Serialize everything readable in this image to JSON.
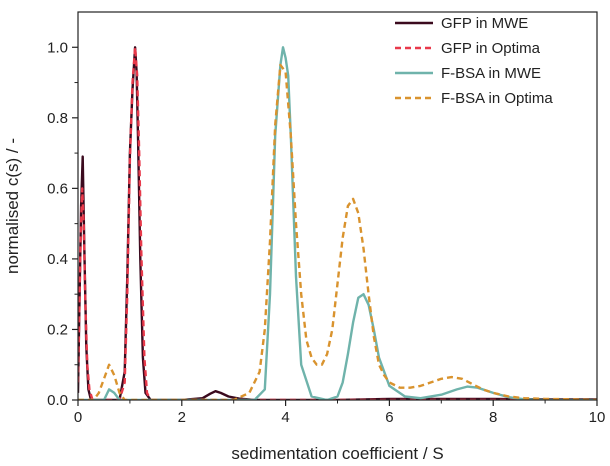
{
  "chart_data": {
    "type": "line",
    "xlabel": "sedimentation coefficient / S",
    "ylabel": "normalised c(s) / -",
    "xlim": [
      0,
      10
    ],
    "ylim": [
      0,
      1.1
    ],
    "x_ticks": [
      0,
      2,
      4,
      6,
      8,
      10
    ],
    "y_ticks": [
      0.0,
      0.2,
      0.4,
      0.6,
      0.8,
      1.0
    ],
    "x_tick_labels": [
      "0",
      "2",
      "4",
      "6",
      "8",
      "10"
    ],
    "y_tick_labels": [
      "0.0",
      "0.2",
      "0.4",
      "0.6",
      "0.8",
      "1.0"
    ],
    "grid": false,
    "legend_position": "top-right",
    "series": [
      {
        "name": "GFP in MWE",
        "color": "#3b0a1e",
        "style": "solid",
        "x": [
          0.0,
          0.03,
          0.06,
          0.09,
          0.12,
          0.16,
          0.2,
          0.25,
          0.3,
          0.4,
          0.6,
          0.8,
          0.9,
          0.95,
          1.0,
          1.05,
          1.1,
          1.13,
          1.16,
          1.2,
          1.25,
          1.3,
          1.4,
          1.6,
          2.0,
          2.4,
          2.55,
          2.65,
          2.75,
          2.9,
          3.1,
          3.4,
          4.0,
          5.0,
          6.0,
          7.0,
          8.0,
          9.0,
          10.0
        ],
        "y": [
          0.02,
          0.3,
          0.55,
          0.69,
          0.45,
          0.15,
          0.03,
          0.0,
          0.0,
          0.0,
          0.0,
          0.0,
          0.08,
          0.35,
          0.7,
          0.88,
          1.0,
          0.93,
          0.72,
          0.4,
          0.12,
          0.02,
          0.0,
          0.0,
          0.0,
          0.005,
          0.018,
          0.025,
          0.02,
          0.01,
          0.004,
          0.0,
          0.0,
          0.0,
          0.003,
          0.003,
          0.003,
          0.002,
          0.002
        ]
      },
      {
        "name": "GFP in Optima",
        "color": "#e8394a",
        "style": "dashed",
        "x": [
          0.0,
          0.05,
          0.08,
          0.11,
          0.14,
          0.18,
          0.22,
          0.28,
          0.35,
          0.8,
          0.9,
          0.95,
          1.0,
          1.05,
          1.1,
          1.14,
          1.18,
          1.22,
          1.28,
          1.33,
          1.4,
          1.6,
          10.0
        ],
        "y": [
          0.05,
          0.45,
          0.6,
          0.5,
          0.28,
          0.1,
          0.03,
          0.0,
          0.0,
          0.0,
          0.05,
          0.3,
          0.68,
          0.9,
          1.0,
          0.92,
          0.7,
          0.42,
          0.12,
          0.02,
          0.0,
          0.0,
          0.0
        ]
      },
      {
        "name": "F-BSA in MWE",
        "color": "#6fb3ab",
        "style": "solid",
        "x": [
          0.0,
          0.4,
          0.5,
          0.6,
          0.7,
          0.8,
          1.0,
          3.4,
          3.6,
          3.7,
          3.8,
          3.9,
          3.95,
          4.0,
          4.05,
          4.1,
          4.2,
          4.3,
          4.5,
          4.8,
          5.0,
          5.1,
          5.2,
          5.3,
          5.4,
          5.5,
          5.6,
          5.7,
          5.8,
          6.0,
          6.3,
          6.6,
          7.0,
          7.3,
          7.5,
          7.7,
          8.0,
          8.3,
          8.6,
          9.0,
          10.0
        ],
        "y": [
          0.0,
          0.0,
          0.0,
          0.03,
          0.02,
          0.0,
          0.0,
          0.0,
          0.03,
          0.3,
          0.75,
          0.95,
          1.0,
          0.97,
          0.92,
          0.75,
          0.35,
          0.1,
          0.01,
          0.0,
          0.01,
          0.05,
          0.13,
          0.22,
          0.29,
          0.3,
          0.27,
          0.2,
          0.12,
          0.04,
          0.01,
          0.005,
          0.015,
          0.03,
          0.038,
          0.035,
          0.02,
          0.008,
          0.002,
          0.0,
          0.0
        ]
      },
      {
        "name": "F-BSA in Optima",
        "color": "#d9932e",
        "style": "dashed",
        "x": [
          0.0,
          0.3,
          0.4,
          0.5,
          0.6,
          0.7,
          0.8,
          0.9,
          1.0,
          3.0,
          3.3,
          3.5,
          3.6,
          3.7,
          3.8,
          3.9,
          4.0,
          4.1,
          4.2,
          4.3,
          4.4,
          4.5,
          4.6,
          4.7,
          4.8,
          4.9,
          5.0,
          5.1,
          5.2,
          5.3,
          5.4,
          5.5,
          5.6,
          5.7,
          5.8,
          5.9,
          6.0,
          6.2,
          6.4,
          6.6,
          6.8,
          7.0,
          7.2,
          7.4,
          7.6,
          7.8,
          8.0,
          8.3,
          8.6,
          9.0,
          9.5,
          10.0
        ],
        "y": [
          0.0,
          0.0,
          0.02,
          0.06,
          0.1,
          0.07,
          0.02,
          0.0,
          0.0,
          0.0,
          0.02,
          0.08,
          0.2,
          0.45,
          0.78,
          0.95,
          0.93,
          0.75,
          0.5,
          0.3,
          0.17,
          0.12,
          0.1,
          0.1,
          0.13,
          0.2,
          0.33,
          0.46,
          0.55,
          0.57,
          0.53,
          0.43,
          0.3,
          0.18,
          0.1,
          0.07,
          0.05,
          0.035,
          0.035,
          0.04,
          0.05,
          0.06,
          0.065,
          0.06,
          0.045,
          0.03,
          0.02,
          0.01,
          0.005,
          0.003,
          0.002,
          0.0
        ]
      }
    ]
  }
}
